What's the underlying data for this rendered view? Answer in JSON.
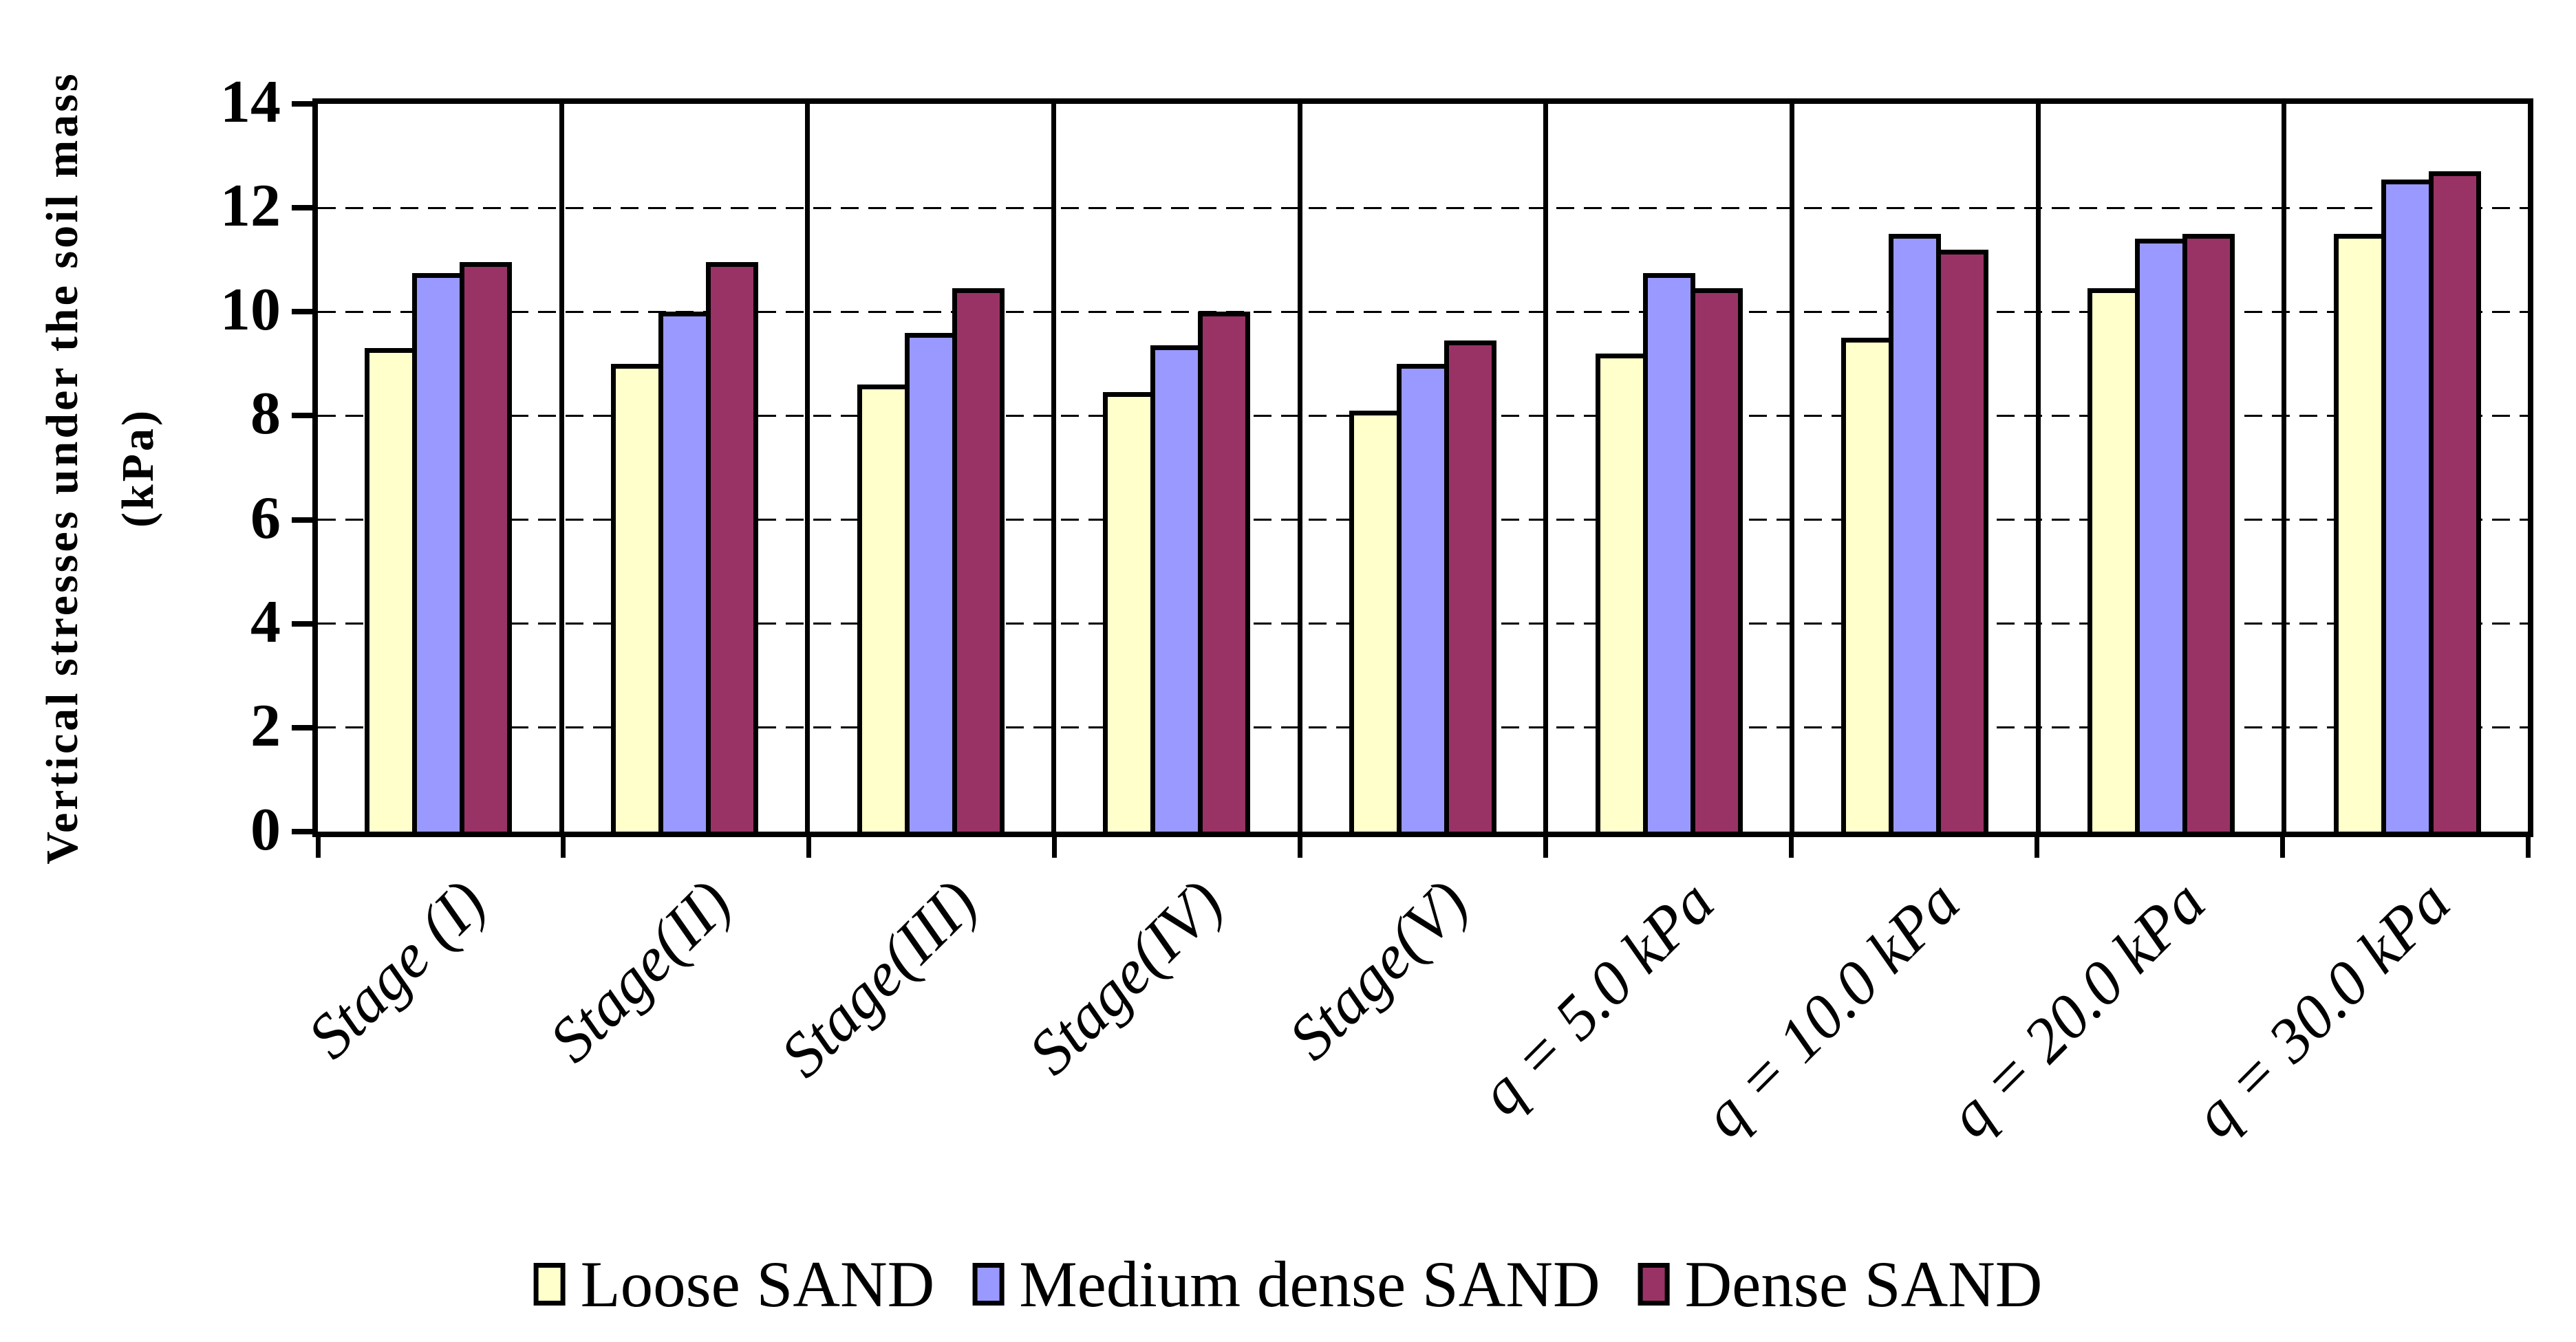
{
  "y_axis": {
    "title_line1": "Vertical stresses under the soil mass",
    "title_line2": "(kPa)",
    "tick_labels": [
      "0",
      "2",
      "4",
      "6",
      "8",
      "10",
      "12",
      "14"
    ]
  },
  "chart_data": {
    "type": "bar",
    "title": "",
    "xlabel": "",
    "ylabel": "Vertical stresses under the soil mass (kPa)",
    "ylim": [
      0,
      14
    ],
    "ytick_step": 2,
    "grid": "horizontal dashed lines at every 2 kPa",
    "panel_separators": "vertical solid line between each category",
    "legend_position": "bottom center",
    "categories": [
      "Stage (I)",
      "Stage(II)",
      "Stage(III)",
      "Stage(IV)",
      "Stage(V)",
      "q = 5.0 kPa",
      "q = 10.0 kPa",
      "q = 20.0 kPa",
      "q = 30.0 kPa"
    ],
    "series": [
      {
        "name": "Loose SAND",
        "color": "#FFFFCC",
        "values": [
          9.3,
          9.0,
          8.6,
          8.45,
          8.1,
          9.2,
          9.5,
          10.45,
          11.5
        ]
      },
      {
        "name": "Medium dense SAND",
        "color": "#9999FF",
        "values": [
          10.75,
          10.0,
          9.6,
          9.35,
          9.0,
          10.75,
          11.5,
          11.4,
          12.55
        ]
      },
      {
        "name": "Dense SAND",
        "color": "#993366",
        "values": [
          10.95,
          10.95,
          10.45,
          10.0,
          9.45,
          10.45,
          11.2,
          11.5,
          12.7
        ]
      }
    ]
  },
  "legend": {
    "items": [
      {
        "label": "Loose SAND",
        "color": "#FFFFCC"
      },
      {
        "label": "Medium dense SAND",
        "color": "#9999FF"
      },
      {
        "label": "Dense SAND",
        "color": "#993366"
      }
    ]
  }
}
